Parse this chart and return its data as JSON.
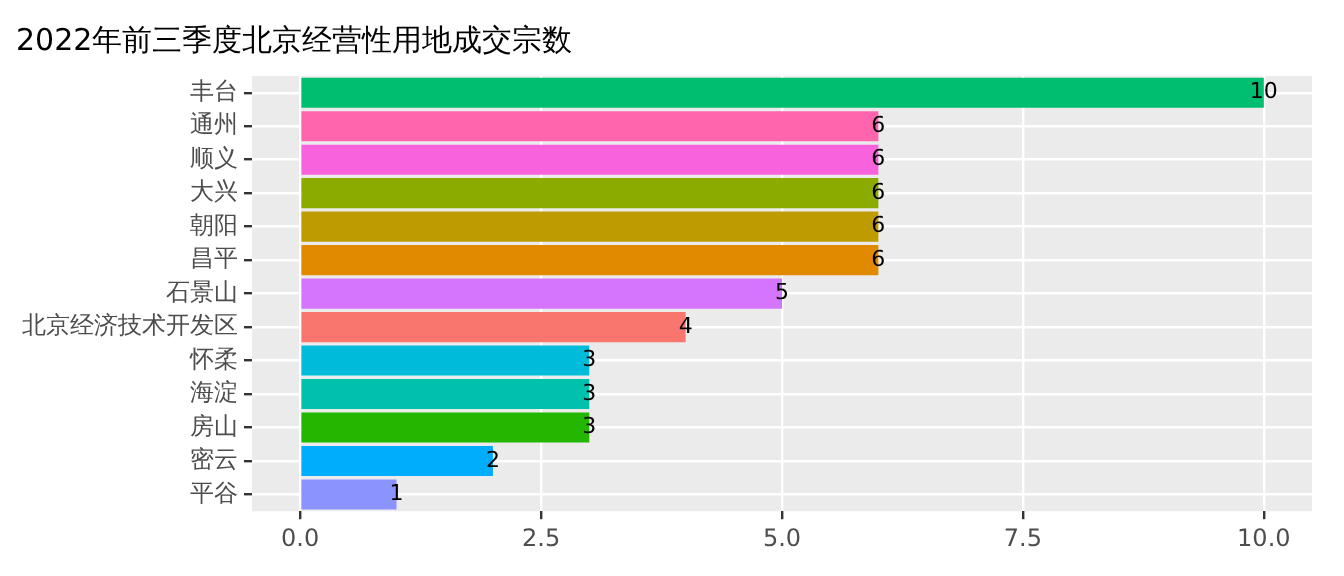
{
  "chart_data": {
    "type": "bar",
    "orientation": "horizontal",
    "title": "2022年前三季度北京经营性用地成交宗数",
    "categories": [
      "丰台",
      "通州",
      "顺义",
      "大兴",
      "朝阳",
      "昌平",
      "石景山",
      "北京经济技术开发区",
      "怀柔",
      "海淀",
      "房山",
      "密云",
      "平谷"
    ],
    "values": [
      10,
      6,
      6,
      6,
      6,
      6,
      5,
      4,
      3,
      3,
      3,
      2,
      1
    ],
    "colors": [
      "#00be70",
      "#ff65ac",
      "#f962dd",
      "#8cab00",
      "#be9c00",
      "#e18a00",
      "#d575fe",
      "#f8766d",
      "#00bbda",
      "#00c1ab",
      "#24b700",
      "#00acfc",
      "#8b93ff"
    ],
    "xlim": [
      -0.5,
      10.5
    ],
    "xticks": [
      {
        "value": 0,
        "label": "0.0"
      },
      {
        "value": 2.5,
        "label": "2.5"
      },
      {
        "value": 5,
        "label": "5.0"
      },
      {
        "value": 7.5,
        "label": "7.5"
      },
      {
        "value": 10,
        "label": "10.0"
      }
    ],
    "grid": true,
    "data_labels": true,
    "legend": false
  }
}
